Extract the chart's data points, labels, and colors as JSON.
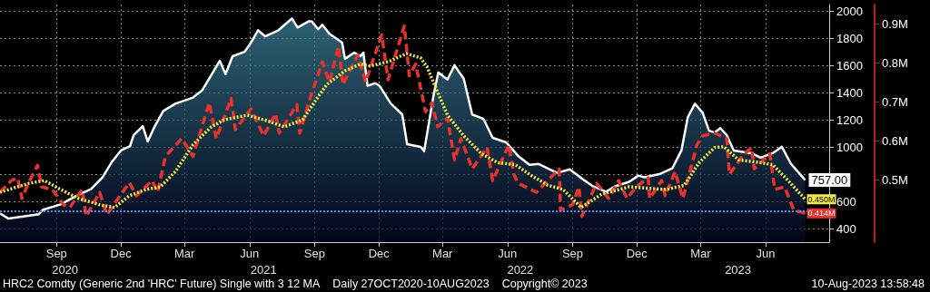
{
  "chart_data": {
    "type": "line",
    "title": "HRC2 Comdty (Generic 2nd 'HRC' Future) Single with 3 12 MA",
    "subtitle": "Daily 27OCT2020-10AUG2023",
    "annotations": [
      "Copyright© 2023",
      "10-Aug-2023 13:58:48"
    ],
    "x2lim": [
      "2020-06-27",
      "2023-09-13"
    ],
    "x2ticks": [
      {
        "value": "2020-09-27",
        "label": "2020"
      },
      {
        "value": "2021-07-05",
        "label": "2021"
      },
      {
        "value": "2022-07-03",
        "label": "2022"
      },
      {
        "value": "2023-05-07",
        "label": "2023"
      }
    ],
    "xlim": [
      "2020-06-27",
      "2023-09-13"
    ],
    "xticks": [
      {
        "value": "2020-09-15",
        "label": "Sep"
      },
      {
        "value": "2020-12-15",
        "label": "Dec"
      },
      {
        "value": "2021-03-15",
        "label": "Mar"
      },
      {
        "value": "2021-06-15",
        "label": "Jun"
      },
      {
        "value": "2021-09-15",
        "label": "Sep"
      },
      {
        "value": "2021-12-15",
        "label": "Dec"
      },
      {
        "value": "2022-03-15",
        "label": "Mar"
      },
      {
        "value": "2022-06-15",
        "label": "Jun"
      },
      {
        "value": "2022-09-15",
        "label": "Sep"
      },
      {
        "value": "2022-12-15",
        "label": "Dec"
      },
      {
        "value": "2023-03-15",
        "label": "Mar"
      },
      {
        "value": "2023-06-15",
        "label": "Jun"
      }
    ],
    "ylim": [
      300,
      2050
    ],
    "yticks": [
      400,
      600,
      {
        "value": 800,
        "label": null
      },
      1000,
      1200,
      1400,
      1600,
      1800,
      2000
    ],
    "y2lim": [
      340000,
      950000
    ],
    "y2ticks": [
      {
        "value": 500000,
        "label": "0.5M"
      },
      {
        "value": 600000,
        "label": "0.6M"
      },
      {
        "value": 700000,
        "label": "0.7M"
      },
      {
        "value": 800000,
        "label": "0.8M"
      },
      {
        "value": 900000,
        "label": "0.9M"
      }
    ],
    "grid": true,
    "marker": "none",
    "ref_lines": [
      {
        "axis": "y",
        "value": 530,
        "color": "#4d8ff0",
        "line_style": "dotted"
      }
    ],
    "series": [
      {
        "type": "area",
        "color": "#ffffff",
        "line_style": "solid",
        "x": [
          "2020-06-27",
          "2020-07-09",
          "2020-08-21",
          "2020-08-27",
          "2020-09-21",
          "2020-10-12",
          "2020-11-03",
          "2020-11-19",
          "2020-12-02",
          "2020-12-15",
          "2020-12-28",
          "2021-01-02",
          "2021-01-15",
          "2021-01-22",
          "2021-02-01",
          "2021-02-13",
          "2021-03-02",
          "2021-03-27",
          "2021-04-09",
          "2021-04-22",
          "2021-05-04",
          "2021-05-12",
          "2021-05-22",
          "2021-06-08",
          "2021-06-17",
          "2021-06-27",
          "2021-07-07",
          "2021-07-26",
          "2021-08-14",
          "2021-08-22",
          "2021-09-07",
          "2021-09-11",
          "2021-09-20",
          "2021-09-26",
          "2021-10-06",
          "2021-10-24",
          "2021-10-28",
          "2021-11-10",
          "2021-11-19",
          "2021-11-23",
          "2021-11-29",
          "2021-12-10",
          "2021-12-16",
          "2022-01-01",
          "2022-01-17",
          "2022-01-24",
          "2022-02-12",
          "2022-02-17",
          "2022-03-02",
          "2022-03-09",
          "2022-03-22",
          "2022-04-01",
          "2022-04-14",
          "2022-04-26",
          "2022-05-12",
          "2022-05-25",
          "2022-06-13",
          "2022-06-30",
          "2022-07-16",
          "2022-07-29",
          "2022-08-24",
          "2022-09-11",
          "2022-10-01",
          "2022-10-14",
          "2022-11-01",
          "2022-11-14",
          "2022-12-04",
          "2022-12-17",
          "2022-12-26",
          "2023-01-17",
          "2023-02-03",
          "2023-02-16",
          "2023-02-25",
          "2023-03-07",
          "2023-03-18",
          "2023-03-27",
          "2023-04-04",
          "2023-04-12",
          "2023-04-21",
          "2023-05-01",
          "2023-05-26",
          "2023-06-08",
          "2023-06-25",
          "2023-07-08",
          "2023-07-21",
          "2023-08-10"
        ],
        "values": [
          512,
          473,
          506,
          539,
          578,
          638,
          691,
          777,
          889,
          975,
          1008,
          1088,
          1154,
          1041,
          1154,
          1266,
          1319,
          1365,
          1418,
          1531,
          1636,
          1537,
          1669,
          1702,
          1769,
          1861,
          1815,
          1861,
          1947,
          1881,
          1927,
          1927,
          1868,
          1901,
          1835,
          1769,
          1650,
          1696,
          1669,
          1696,
          1451,
          1471,
          1451,
          1319,
          1240,
          1021,
          1002,
          969,
          1372,
          1550,
          1497,
          1603,
          1504,
          1240,
          1207,
          1068,
          1035,
          935,
          869,
          876,
          810,
          836,
          757,
          711,
          671,
          711,
          744,
          790,
          777,
          803,
          843,
          975,
          1220,
          1319,
          1253,
          1121,
          1107,
          1140,
          1088,
          975,
          955,
          922,
          955,
          1002,
          876,
          757
        ],
        "value_labels": [
          null,
          null,
          null,
          null,
          null,
          null,
          null,
          null,
          null,
          null,
          null,
          null,
          null,
          null,
          null,
          null,
          null,
          null,
          null,
          null,
          null,
          null,
          null,
          null,
          null,
          null,
          null,
          null,
          null,
          null,
          null,
          null,
          null,
          null,
          null,
          null,
          null,
          null,
          null,
          null,
          null,
          null,
          null,
          null,
          null,
          null,
          null,
          null,
          null,
          null,
          null,
          null,
          null,
          null,
          null,
          null,
          null,
          null,
          null,
          null,
          null,
          null,
          null,
          null,
          null,
          null,
          null,
          null,
          null,
          null,
          null,
          null,
          null,
          null,
          null,
          null,
          null,
          null,
          null,
          null,
          null,
          null,
          null,
          null,
          null,
          "757.00"
        ]
      },
      {
        "axis": "y2",
        "color": "#e8322a",
        "line_style": "dashed",
        "x": [
          "2020-06-27",
          "2020-07-13",
          "2020-07-22",
          "2020-07-28",
          "2020-08-06",
          "2020-08-19",
          "2020-08-25",
          "2020-09-09",
          "2020-09-25",
          "2020-10-04",
          "2020-10-21",
          "2020-10-27",
          "2020-11-15",
          "2020-11-25",
          "2020-12-11",
          "2020-12-27",
          "2021-01-06",
          "2021-01-28",
          "2021-02-05",
          "2021-02-16",
          "2021-03-11",
          "2021-03-27",
          "2021-04-06",
          "2021-04-19",
          "2021-04-29",
          "2021-05-20",
          "2021-05-26",
          "2021-06-17",
          "2021-07-05",
          "2021-07-22",
          "2021-07-27",
          "2021-08-21",
          "2021-08-25",
          "2021-09-07",
          "2021-09-26",
          "2021-10-06",
          "2021-10-19",
          "2021-10-25",
          "2021-11-15",
          "2021-11-26",
          "2021-12-19",
          "2021-12-28",
          "2022-01-10",
          "2022-01-20",
          "2022-01-27",
          "2022-02-05",
          "2022-02-19",
          "2022-02-28",
          "2022-03-08",
          "2022-03-22",
          "2022-04-01",
          "2022-04-10",
          "2022-04-26",
          "2022-05-17",
          "2022-05-25",
          "2022-06-17",
          "2022-06-24",
          "2022-06-30",
          "2022-07-26",
          "2022-08-07",
          "2022-08-27",
          "2022-08-29",
          "2022-09-15",
          "2022-09-24",
          "2022-09-28",
          "2022-10-19",
          "2022-11-05",
          "2022-11-19",
          "2022-12-01",
          "2022-12-14",
          "2022-12-31",
          "2023-01-02",
          "2023-01-19",
          "2023-01-24",
          "2023-02-07",
          "2023-02-18",
          "2023-03-01",
          "2023-03-10",
          "2023-03-18",
          "2023-04-04",
          "2023-04-21",
          "2023-04-25",
          "2023-05-13",
          "2023-05-26",
          "2023-05-30",
          "2023-06-21",
          "2023-06-28",
          "2023-07-12",
          "2023-07-25",
          "2023-08-10"
        ],
        "values": [
          468000,
          498000,
          505000,
          452000,
          491000,
          537000,
          482000,
          475000,
          436000,
          429000,
          475000,
          406000,
          468000,
          410000,
          452000,
          493000,
          459000,
          498000,
          468000,
          560000,
          606000,
          560000,
          620000,
          698000,
          606000,
          709000,
          629000,
          682000,
          613000,
          670000,
          620000,
          693000,
          620000,
          700000,
          803000,
          751000,
          843000,
          744000,
          820000,
          751000,
          872000,
          757000,
          836000,
          895000,
          767000,
          797000,
          675000,
          698000,
          636000,
          659000,
          551000,
          606000,
          528000,
          583000,
          498000,
          590000,
          514000,
          491000,
          468000,
          491000,
          528000,
          422000,
          436000,
          482000,
          406000,
          491000,
          452000,
          498000,
          452000,
          482000,
          505000,
          452000,
          498000,
          459000,
          521000,
          452000,
          528000,
          590000,
          613000,
          620000,
          606000,
          514000,
          560000,
          583000,
          528000,
          567000,
          475000,
          482000,
          422000,
          414000
        ],
        "value_labels": [
          null,
          null,
          null,
          null,
          null,
          null,
          null,
          null,
          null,
          null,
          null,
          null,
          null,
          null,
          null,
          null,
          null,
          null,
          null,
          null,
          null,
          null,
          null,
          null,
          null,
          null,
          null,
          null,
          null,
          null,
          null,
          null,
          null,
          null,
          null,
          null,
          null,
          null,
          null,
          null,
          null,
          null,
          null,
          null,
          null,
          null,
          null,
          null,
          null,
          null,
          null,
          null,
          null,
          null,
          null,
          null,
          null,
          null,
          null,
          null,
          null,
          null,
          null,
          null,
          null,
          null,
          null,
          null,
          null,
          null,
          null,
          null,
          null,
          null,
          null,
          null,
          null,
          null,
          null,
          null,
          null,
          null,
          null,
          null,
          null,
          null,
          null,
          null,
          null,
          "0.414M"
        ]
      },
      {
        "axis": "y2",
        "color": "#f2ec3c",
        "line_style": "dotted",
        "x": [
          "2020-06-27",
          "2020-08-07",
          "2020-08-29",
          "2020-09-21",
          "2020-10-16",
          "2020-11-15",
          "2020-12-06",
          "2020-12-27",
          "2021-01-19",
          "2021-02-09",
          "2021-03-02",
          "2021-03-27",
          "2021-04-22",
          "2021-05-10",
          "2021-06-12",
          "2021-07-09",
          "2021-08-03",
          "2021-08-29",
          "2021-09-17",
          "2021-10-02",
          "2021-10-28",
          "2021-11-19",
          "2021-12-02",
          "2021-12-28",
          "2022-01-23",
          "2022-02-12",
          "2022-02-21",
          "2022-03-06",
          "2022-03-22",
          "2022-04-14",
          "2022-05-09",
          "2022-06-01",
          "2022-06-26",
          "2022-07-16",
          "2022-08-11",
          "2022-09-02",
          "2022-09-27",
          "2022-10-26",
          "2022-12-04",
          "2022-12-26",
          "2023-01-25",
          "2023-02-20",
          "2023-03-13",
          "2023-04-04",
          "2023-04-17",
          "2023-05-08",
          "2023-06-08",
          "2023-06-25",
          "2023-07-17",
          "2023-08-10"
        ],
        "values": [
          468000,
          491000,
          498000,
          475000,
          452000,
          436000,
          429000,
          459000,
          475000,
          482000,
          521000,
          590000,
          636000,
          654000,
          666000,
          652000,
          636000,
          654000,
          705000,
          744000,
          780000,
          797000,
          792000,
          803000,
          824000,
          813000,
          790000,
          734000,
          666000,
          613000,
          567000,
          544000,
          539000,
          514000,
          486000,
          475000,
          429000,
          463000,
          482000,
          479000,
          475000,
          486000,
          544000,
          583000,
          585000,
          551000,
          544000,
          539000,
          498000,
          450000
        ],
        "value_labels": [
          null,
          null,
          null,
          null,
          null,
          null,
          null,
          null,
          null,
          null,
          null,
          null,
          null,
          null,
          null,
          null,
          null,
          null,
          null,
          null,
          null,
          null,
          null,
          null,
          null,
          null,
          null,
          null,
          null,
          null,
          null,
          null,
          null,
          null,
          null,
          null,
          null,
          null,
          null,
          null,
          null,
          null,
          null,
          null,
          null,
          null,
          null,
          null,
          null,
          "0.450M"
        ]
      }
    ]
  }
}
